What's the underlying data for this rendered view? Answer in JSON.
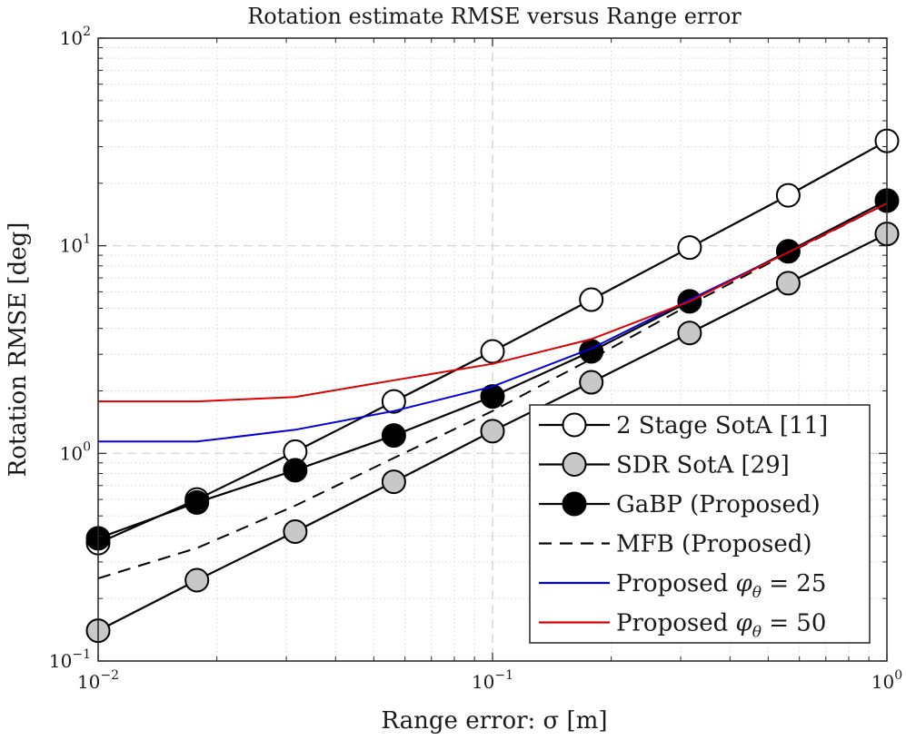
{
  "chart_data": {
    "type": "line",
    "title": "Rotation estimate RMSE versus Range error",
    "xlabel": "Range error: σ [m]",
    "ylabel": "Rotation RMSE [deg]",
    "x_scale": "log",
    "y_scale": "log",
    "xlim": [
      0.01,
      1
    ],
    "ylim": [
      0.1,
      100
    ],
    "grid": true,
    "legend_position": "bottom-right",
    "x": [
      0.01,
      0.0178,
      0.0316,
      0.0562,
      0.1,
      0.178,
      0.316,
      0.562,
      1.0
    ],
    "x_ticks": [
      {
        "value": 0.01,
        "base": "10",
        "exp": "−2"
      },
      {
        "value": 0.1,
        "base": "10",
        "exp": "−1"
      },
      {
        "value": 1,
        "base": "10",
        "exp": "0"
      }
    ],
    "y_ticks": [
      {
        "value": 0.1,
        "base": "10",
        "exp": "−1"
      },
      {
        "value": 1,
        "base": "10",
        "exp": "0"
      },
      {
        "value": 10,
        "base": "10",
        "exp": "1"
      },
      {
        "value": 100,
        "base": "10",
        "exp": "2"
      }
    ],
    "series": [
      {
        "name": "2 Stage SotA [11]",
        "style": "solid-white-markers",
        "color": "#000000",
        "marker_fill": "#ffffff",
        "values": [
          0.37,
          0.6,
          1.02,
          1.78,
          3.1,
          5.5,
          9.8,
          17.5,
          32.0
        ]
      },
      {
        "name": "SDR SotA [29]",
        "style": "solid-gray-markers",
        "color": "#000000",
        "marker_fill": "#c8c8c8",
        "values": [
          0.14,
          0.245,
          0.42,
          0.73,
          1.28,
          2.2,
          3.8,
          6.6,
          11.4
        ]
      },
      {
        "name": "GaBP (Proposed)",
        "style": "solid-black-markers",
        "color": "#000000",
        "marker_fill": "#000000",
        "values": [
          0.39,
          0.58,
          0.83,
          1.22,
          1.88,
          3.1,
          5.4,
          9.4,
          16.5
        ]
      },
      {
        "name": "MFB (Proposed)",
        "style": "dashed",
        "color": "#000000",
        "values": [
          0.25,
          0.35,
          0.56,
          0.95,
          1.6,
          2.85,
          5.2,
          9.2,
          16.0
        ]
      },
      {
        "name": "Proposed φ_θ = 25",
        "legend_text": "Proposed φθ = 25",
        "style": "solid",
        "color": "#0000dd",
        "values": [
          1.14,
          1.14,
          1.3,
          1.6,
          2.1,
          3.2,
          5.5,
          9.3,
          16.0
        ]
      },
      {
        "name": "Proposed φ_θ = 50",
        "legend_text": "Proposed φθ = 50",
        "style": "solid",
        "color": "#dd0000",
        "values": [
          1.78,
          1.78,
          1.87,
          2.25,
          2.7,
          3.55,
          5.4,
          9.3,
          16.0
        ]
      }
    ]
  }
}
